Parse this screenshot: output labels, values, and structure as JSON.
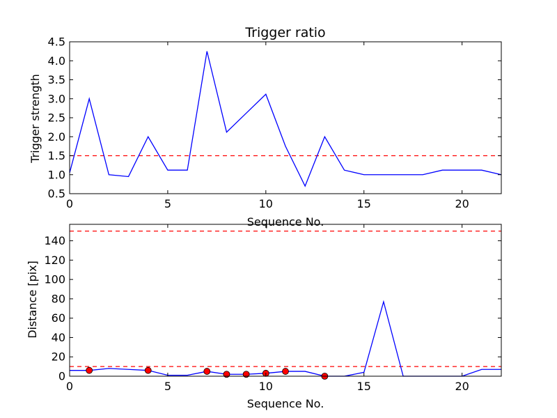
{
  "chart_data": [
    {
      "type": "line",
      "title": "Trigger ratio",
      "xlabel": "Sequence No.",
      "ylabel": "Trigger strength",
      "xlim": [
        0,
        22
      ],
      "ylim": [
        0.5,
        4.5
      ],
      "x_ticks": [
        0,
        5,
        10,
        15,
        20
      ],
      "y_ticks": [
        0.5,
        1.0,
        1.5,
        2.0,
        2.5,
        3.0,
        3.5,
        4.0,
        4.5
      ],
      "y_tick_labels": [
        "0.5",
        "1.0",
        "1.5",
        "2.0",
        "2.5",
        "3.0",
        "3.5",
        "4.0",
        "4.5"
      ],
      "grid": false,
      "line_color": "#0000ff",
      "threshold_color": "#ff0000",
      "x": [
        0,
        1,
        2,
        3,
        4,
        5,
        6,
        7,
        8,
        9,
        10,
        11,
        12,
        13,
        14,
        15,
        16,
        17,
        18,
        19,
        20,
        21,
        22
      ],
      "values": [
        1.05,
        3.0,
        1.0,
        0.95,
        2.0,
        1.12,
        1.12,
        4.25,
        2.12,
        2.62,
        3.12,
        1.75,
        0.7,
        2.0,
        1.12,
        1.0,
        1.0,
        1.0,
        1.0,
        1.12,
        1.12,
        1.12,
        1.0
      ],
      "threshold": 1.5
    },
    {
      "type": "line",
      "title": "",
      "xlabel": "Sequence No.",
      "ylabel": "Distance [pix]",
      "xlim": [
        0,
        22
      ],
      "ylim": [
        0,
        157
      ],
      "x_ticks": [
        0,
        5,
        10,
        15,
        20
      ],
      "y_ticks": [
        0,
        20,
        40,
        60,
        80,
        100,
        120,
        140
      ],
      "y_tick_labels": [
        "0",
        "20",
        "40",
        "60",
        "80",
        "100",
        "120",
        "140"
      ],
      "grid": false,
      "line_color": "#0000ff",
      "threshold_color": "#ff0000",
      "marker_color": "#ff0000",
      "x": [
        0,
        1,
        2,
        3,
        4,
        5,
        6,
        7,
        8,
        9,
        10,
        11,
        12,
        13,
        14,
        15,
        16,
        17,
        18,
        19,
        20,
        21,
        22
      ],
      "values": [
        6,
        6,
        8,
        7,
        6,
        1,
        1,
        5,
        2,
        2,
        3,
        5,
        5,
        0,
        0,
        4,
        77,
        0,
        0,
        0,
        0,
        7,
        7
      ],
      "markers": [
        {
          "x": 1,
          "y": 6
        },
        {
          "x": 4,
          "y": 6
        },
        {
          "x": 7,
          "y": 5
        },
        {
          "x": 8,
          "y": 2
        },
        {
          "x": 9,
          "y": 2
        },
        {
          "x": 10,
          "y": 3
        },
        {
          "x": 11,
          "y": 5
        },
        {
          "x": 13,
          "y": 0
        }
      ],
      "thresholds": [
        10,
        150
      ]
    }
  ]
}
